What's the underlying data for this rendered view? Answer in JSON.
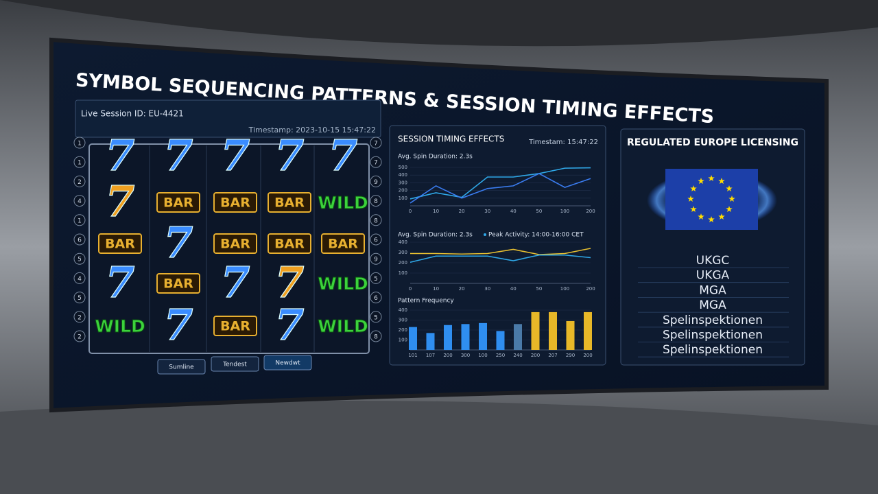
{
  "title": "SYMBOL SEQUENCING PATTERNS & SESSION TIMING EFFECTS",
  "session": {
    "id": "Live Session ID: EU-4421",
    "timestamp": "Timestamp: 2023-10-15 15:47:22"
  },
  "reels": {
    "rows": [
      [
        {
          "label": "7",
          "color": "#3a8cff"
        },
        {
          "label": "7",
          "color": "#3a8cff"
        },
        {
          "label": "7",
          "color": "#3a8cff"
        },
        {
          "label": "7",
          "color": "#3a8cff"
        },
        {
          "label": "7",
          "color": "#3a8cff"
        }
      ],
      [
        {
          "label": "7",
          "color": "#f0a020"
        },
        {
          "label": "BAR",
          "color": "#e8b030"
        },
        {
          "label": "BAR",
          "color": "#e8b030"
        },
        {
          "label": "BAR",
          "color": "#e8b030"
        },
        {
          "label": "WILD",
          "color": "#3cd23c"
        }
      ],
      [
        {
          "label": "BAR",
          "color": "#e8b030"
        },
        {
          "label": "7",
          "color": "#3a8cff"
        },
        {
          "label": "BAR",
          "color": "#e8b030"
        },
        {
          "label": "BAR",
          "color": "#e8b030"
        },
        {
          "label": "BAR",
          "color": "#e8b030"
        }
      ],
      [
        {
          "label": "7",
          "color": "#3a8cff"
        },
        {
          "label": "BAR",
          "color": "#e8b030"
        },
        {
          "label": "7",
          "color": "#3a8cff"
        },
        {
          "label": "7",
          "color": "#f0a020"
        },
        {
          "label": "WILD",
          "color": "#3cd23c"
        }
      ],
      [
        {
          "label": "WILD",
          "color": "#3cd23c"
        },
        {
          "label": "7",
          "color": "#3a8cff"
        },
        {
          "label": "BAR",
          "color": "#e8b030"
        },
        {
          "label": "7",
          "color": "#3a8cff"
        },
        {
          "label": "WILD",
          "color": "#3cd23c"
        }
      ]
    ],
    "left_lines": [
      "1",
      "1",
      "2",
      "4",
      "1",
      "6",
      "5",
      "4",
      "5",
      "2",
      "2"
    ],
    "right_lines": [
      "7",
      "7",
      "9",
      "8",
      "8",
      "6",
      "9",
      "5",
      "6",
      "5",
      "8"
    ],
    "buttons": [
      "Sumline",
      "Tendest",
      "Newdwt"
    ]
  },
  "timing": {
    "title": "SESSION TIMING EFFECTS",
    "timestamp": "Timestam: 15:47:22",
    "charts": [
      {
        "type": "line",
        "label": "Avg. Spin Duration: 2.3s",
        "categories": [
          "0",
          "10",
          "20",
          "30",
          "40",
          "50",
          "100",
          "200"
        ],
        "ylim": [
          0,
          500
        ],
        "yticks": [
          100,
          200,
          300,
          400,
          500
        ],
        "series": [
          {
            "color": "#2fa8e8",
            "values": [
              90,
              170,
              110,
              375,
              375,
              420,
              490,
              495
            ]
          },
          {
            "color": "#3a7cf0",
            "values": [
              36,
              260,
              100,
              225,
              260,
              420,
              240,
              355
            ]
          }
        ]
      },
      {
        "type": "line",
        "label": "Avg. Spin Duration: 2.3s",
        "note": "Peak Activity: 14:00-16:00 CET",
        "categories": [
          "0",
          "10",
          "20",
          "30",
          "40",
          "50",
          "100",
          "200"
        ],
        "ylim": [
          0,
          400
        ],
        "yticks": [
          100,
          200,
          300,
          400
        ],
        "series": [
          {
            "color": "#e8c030",
            "values": [
              290,
              290,
              285,
              290,
              330,
              280,
              290,
              340
            ]
          },
          {
            "color": "#2fa8e8",
            "values": [
              205,
              265,
              265,
              265,
              220,
              275,
              275,
              250
            ]
          }
        ]
      },
      {
        "type": "bar",
        "label": "Pattern Frequency",
        "categories": [
          "101",
          "107",
          "200",
          "300",
          "100",
          "250",
          "240",
          "200",
          "207",
          "290",
          "200"
        ],
        "ylim": [
          0,
          400
        ],
        "yticks": [
          100,
          200,
          300,
          400
        ],
        "values": [
          230,
          170,
          250,
          260,
          270,
          190,
          260,
          380,
          380,
          290,
          380
        ],
        "colors": [
          "#2f8ef0",
          "#2f8ef0",
          "#2f8ef0",
          "#2f8ef0",
          "#2f8ef0",
          "#2f8ef0",
          "#4a7aa8",
          "#e8b828",
          "#e8b828",
          "#e8b828",
          "#e8b828"
        ]
      }
    ]
  },
  "licensing": {
    "title": "REGULATED EUROPE LICENSING",
    "authorities": [
      "UKGC",
      "UKGA",
      "MGA",
      "MGA",
      "Spelinspektionen",
      "Spelinspektionen",
      "Spelinspektionen"
    ]
  }
}
